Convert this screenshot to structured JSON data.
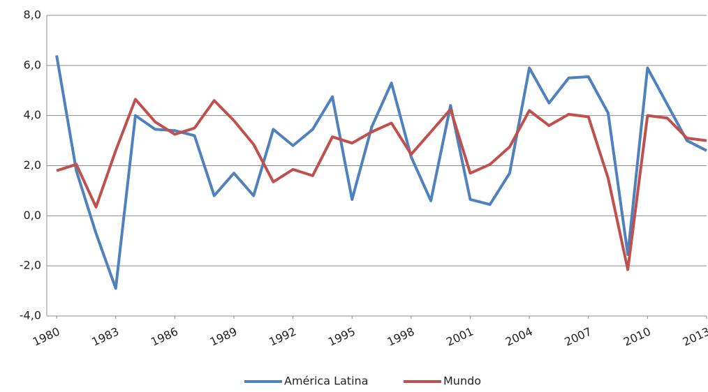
{
  "chart_data": {
    "type": "line",
    "x": [
      1980,
      1981,
      1982,
      1983,
      1984,
      1985,
      1986,
      1987,
      1988,
      1989,
      1990,
      1991,
      1992,
      1993,
      1994,
      1995,
      1996,
      1997,
      1998,
      1999,
      2000,
      2001,
      2002,
      2003,
      2004,
      2005,
      2006,
      2007,
      2008,
      2009,
      2010,
      2011,
      2012,
      2013
    ],
    "series": [
      {
        "name": "América Latina",
        "color": "#4f81bd",
        "values": [
          6.4,
          1.8,
          -0.7,
          -2.9,
          4.0,
          3.45,
          3.4,
          3.2,
          0.8,
          1.7,
          0.8,
          3.45,
          2.8,
          3.45,
          4.75,
          0.65,
          3.55,
          5.3,
          2.35,
          0.6,
          4.4,
          0.65,
          0.45,
          1.7,
          5.9,
          4.5,
          5.5,
          5.55,
          4.1,
          -1.55,
          5.9,
          4.45,
          3.0,
          2.6
        ]
      },
      {
        "name": "Mundo",
        "color": "#c0504d",
        "values": [
          1.8,
          2.05,
          0.35,
          2.6,
          4.65,
          3.75,
          3.25,
          3.5,
          4.6,
          3.8,
          2.85,
          1.35,
          1.85,
          1.6,
          3.15,
          2.9,
          3.35,
          3.7,
          2.45,
          3.35,
          4.25,
          1.7,
          2.05,
          2.75,
          4.2,
          3.6,
          4.05,
          3.95,
          1.5,
          -2.15,
          4.0,
          3.9,
          3.1,
          3.0
        ]
      }
    ],
    "xlim": [
      1979.5,
      2013
    ],
    "xticks": [
      1980,
      1983,
      1986,
      1989,
      1992,
      1995,
      1998,
      2001,
      2004,
      2007,
      2010,
      2013
    ],
    "ylim": [
      -4,
      8
    ],
    "yticks": [
      {
        "value": -4,
        "label": "-4,0"
      },
      {
        "value": -2,
        "label": "-2,0"
      },
      {
        "value": 0,
        "label": "0,0"
      },
      {
        "value": 2,
        "label": "2,0"
      },
      {
        "value": 4,
        "label": "4,0"
      },
      {
        "value": 6,
        "label": "6,0"
      },
      {
        "value": 8,
        "label": "8,0"
      }
    ],
    "grid": true,
    "legend": "bottom"
  }
}
